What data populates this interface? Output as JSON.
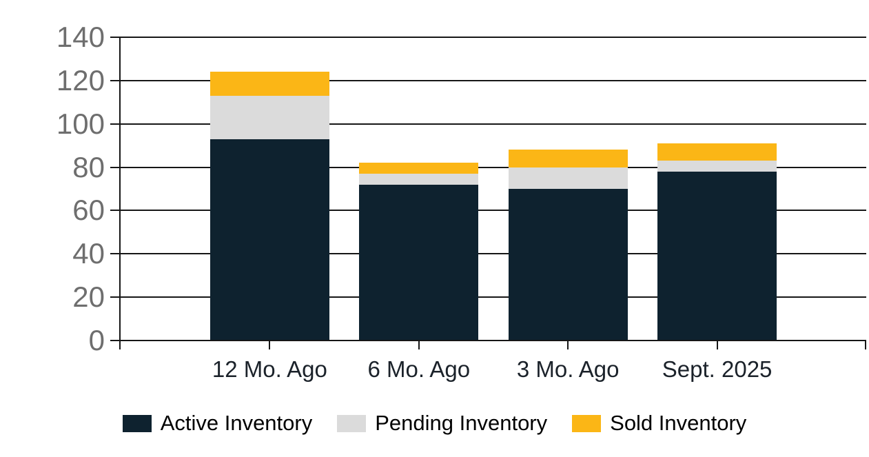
{
  "chart_data": {
    "type": "bar",
    "stacked": true,
    "title": "",
    "xlabel": "",
    "ylabel": "",
    "categories": [
      "12 Mo. Ago",
      "6 Mo. Ago",
      "3 Mo. Ago",
      "Sept. 2025"
    ],
    "series": [
      {
        "name": "Active Inventory",
        "color": "#0E222F",
        "values": [
          93,
          72,
          70,
          78
        ]
      },
      {
        "name": "Pending Inventory",
        "color": "#DBDBDB",
        "values": [
          20,
          5,
          10,
          5
        ]
      },
      {
        "name": "Sold Inventory",
        "color": "#FBB616",
        "values": [
          11,
          5,
          8,
          8
        ]
      }
    ],
    "stack_totals": [
      124,
      82,
      88,
      91
    ],
    "ylim": [
      0,
      140
    ],
    "yticks": [
      0,
      20,
      40,
      60,
      80,
      100,
      120,
      140
    ],
    "grid": true,
    "legend_position": "bottom"
  },
  "colors": {
    "background": "#FFFFFF",
    "axis_line": "#161616",
    "gridline": "#161616",
    "y_tick_label": "#6E6E6E",
    "x_tick_label": "#1B222A",
    "legend_text": "#000000"
  }
}
